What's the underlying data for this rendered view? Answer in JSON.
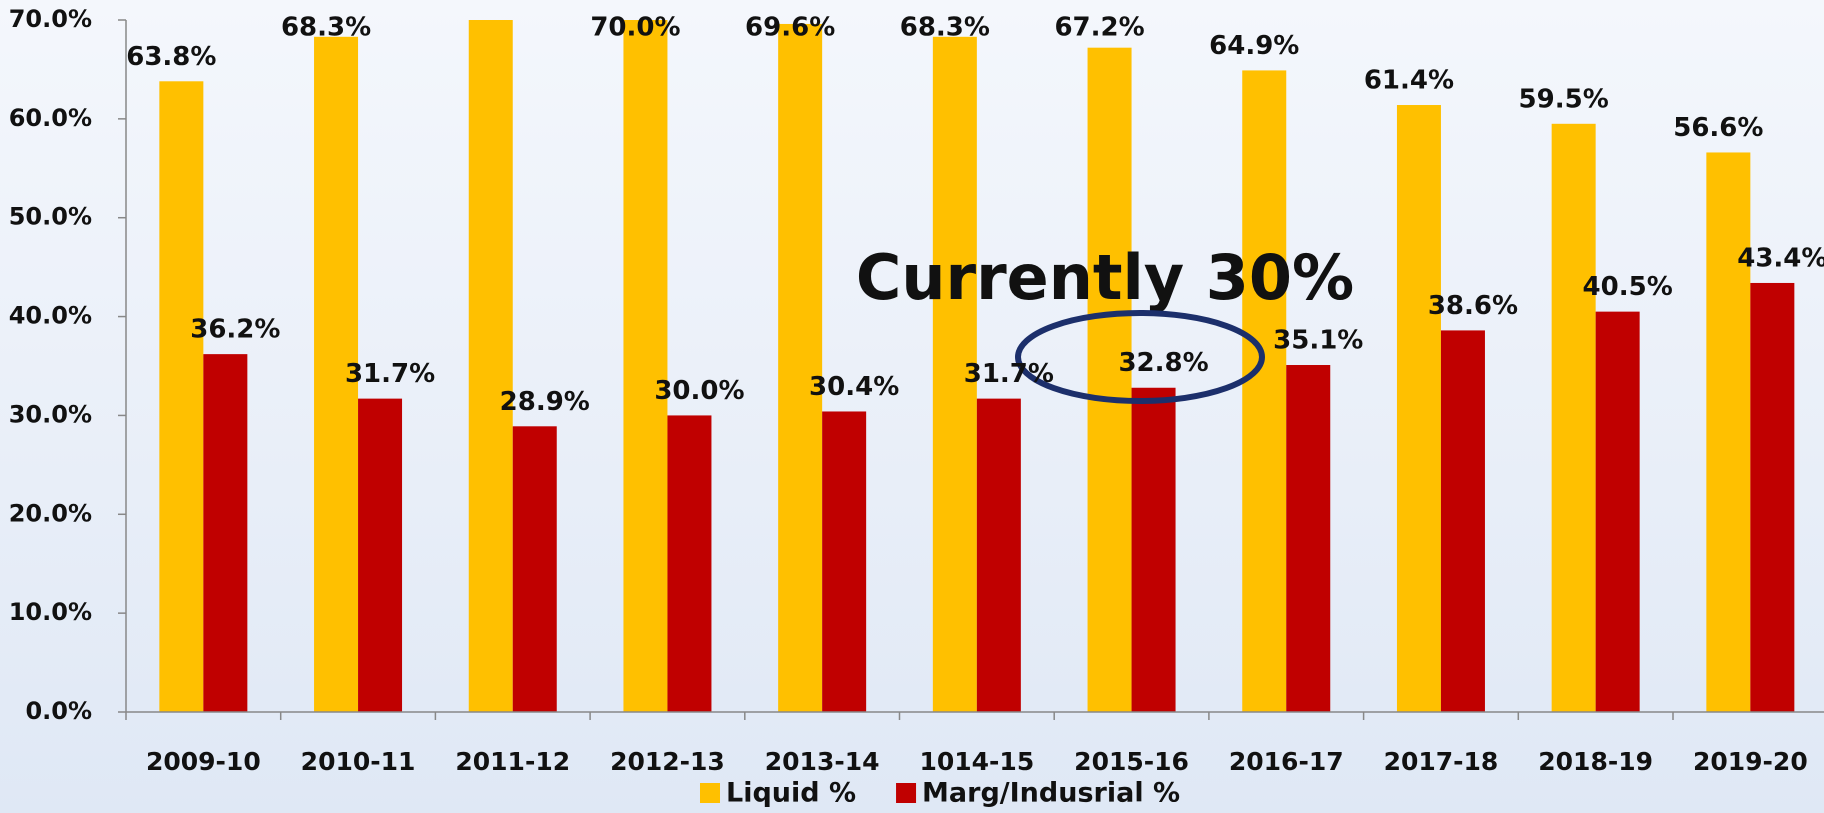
{
  "chart_data": {
    "type": "bar",
    "annotation": "Currently 30%",
    "categories": [
      "2009-10",
      "2010-11",
      "2011-12",
      "2012-13",
      "2013-14",
      "1014-15",
      "2015-16",
      "2016-17",
      "2017-18",
      "2018-19",
      "2019-20"
    ],
    "series": [
      {
        "name": "Liquid %",
        "color": "#ffc000",
        "values": [
          63.8,
          68.3,
          71.1,
          70.0,
          69.6,
          68.3,
          67.2,
          64.9,
          61.4,
          59.5,
          56.6
        ],
        "value_labels": [
          "63.8%",
          "68.3%",
          null,
          "70.0%",
          "69.6%",
          "68.3%",
          "67.2%",
          "64.9%",
          "61.4%",
          "59.5%",
          "56.6%"
        ]
      },
      {
        "name": "Marg/Indusrial %",
        "color": "#c00000",
        "values": [
          36.2,
          31.7,
          28.9,
          30.0,
          30.4,
          31.7,
          32.8,
          35.1,
          38.6,
          40.5,
          43.4
        ],
        "value_labels": [
          "36.2%",
          "31.7%",
          "28.9%",
          "30.0%",
          "30.4%",
          "31.7%",
          "32.8%",
          "35.1%",
          "38.6%",
          "40.5%",
          "43.4%"
        ]
      }
    ],
    "ylim": [
      0,
      70
    ],
    "yticks": [
      {
        "value": 0,
        "label": "0.0%"
      },
      {
        "value": 10,
        "label": "10.0%"
      },
      {
        "value": 20,
        "label": "20.0%"
      },
      {
        "value": 30,
        "label": "30.0%"
      },
      {
        "value": 40,
        "label": "40.0%"
      },
      {
        "value": 50,
        "label": "50.0%"
      },
      {
        "value": 60,
        "label": "60.0%"
      },
      {
        "value": 70,
        "label": "70.0%"
      }
    ],
    "grid": false,
    "legend": "bottom"
  }
}
